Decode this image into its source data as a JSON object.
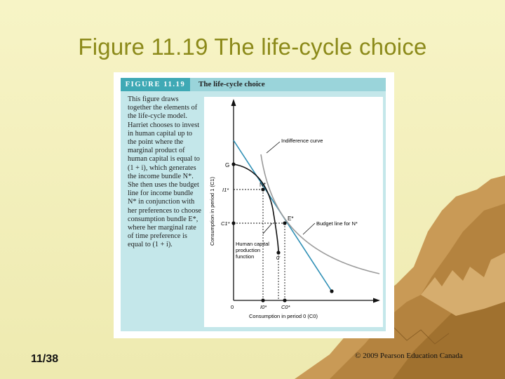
{
  "slide": {
    "title": "Figure 11.19 The life-cycle choice",
    "page_number": "11/38",
    "copyright": "© 2009 Pearson Education Canada"
  },
  "figure": {
    "label": "FIGURE 11.19",
    "title": "The life-cycle choice",
    "description": "This figure draws together the elements of the life-cycle model. Harriet chooses to invest in human capital up to the point where the marginal product of human capital is equal to (1 + i), which generates the income bundle N*. She then uses the budget line for income bundle N* in conjunction with her preferences to choose consumption bundle E*, where her marginal rate of time preference is equal to (1 + i)."
  },
  "graph": {
    "y_axis_label": "Consumption in period 1 (C1)",
    "x_axis_label": "Consumption in period 0 (C0)",
    "origin_label": "0",
    "labels": {
      "G": "G",
      "N": "N*",
      "E": "E*",
      "I1": "I1*",
      "C1": "C1*",
      "O_prime": "0′",
      "I0": "I0*",
      "C0": "C0*",
      "indifference": "Indifference curve",
      "budget": "Budget line for N*",
      "hcpf_line1": "Human capital",
      "hcpf_line2": "production",
      "hcpf_line3": "function"
    },
    "colors": {
      "budget_line": "#2e8fb5",
      "indifference_curve": "#9a9a9a",
      "production_function": "#111111"
    }
  }
}
